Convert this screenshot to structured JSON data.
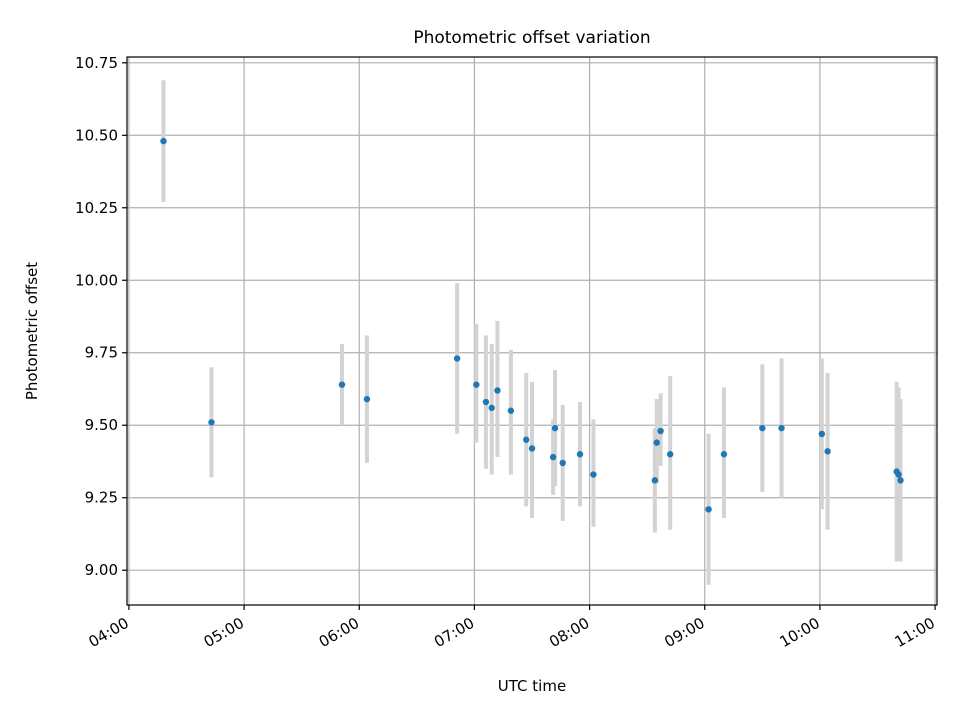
{
  "chart_data": {
    "type": "scatter",
    "title": "Photometric offset variation",
    "xlabel": "UTC time",
    "ylabel": "Photometric offset",
    "x_axis_type": "time",
    "xlim": [
      "03:59",
      "11:01"
    ],
    "ylim": [
      8.88,
      10.77
    ],
    "xticks": [
      "04:00",
      "05:00",
      "06:00",
      "07:00",
      "08:00",
      "09:00",
      "10:00",
      "11:00"
    ],
    "yticks": [
      9.0,
      9.25,
      9.5,
      9.75,
      10.0,
      10.25,
      10.5,
      10.75
    ],
    "ytick_labels": [
      "9.00",
      "9.25",
      "9.50",
      "9.75",
      "10.00",
      "10.25",
      "10.50",
      "10.75"
    ],
    "grid": true,
    "legend": "none",
    "marker_color": "#1f77b4",
    "errorbar_color": "#d3d3d3",
    "points": [
      {
        "x": "04:18",
        "y": 10.48,
        "err_low": 10.27,
        "err_high": 10.69
      },
      {
        "x": "04:43",
        "y": 9.51,
        "err_low": 9.32,
        "err_high": 9.7
      },
      {
        "x": "05:51",
        "y": 9.64,
        "err_low": 9.5,
        "err_high": 9.78
      },
      {
        "x": "06:04",
        "y": 9.59,
        "err_low": 9.37,
        "err_high": 9.81
      },
      {
        "x": "06:51",
        "y": 9.73,
        "err_low": 9.47,
        "err_high": 9.99
      },
      {
        "x": "07:01",
        "y": 9.64,
        "err_low": 9.44,
        "err_high": 9.85
      },
      {
        "x": "07:06",
        "y": 9.58,
        "err_low": 9.35,
        "err_high": 9.81
      },
      {
        "x": "07:09",
        "y": 9.56,
        "err_low": 9.33,
        "err_high": 9.78
      },
      {
        "x": "07:12",
        "y": 9.62,
        "err_low": 9.39,
        "err_high": 9.86
      },
      {
        "x": "07:19",
        "y": 9.55,
        "err_low": 9.33,
        "err_high": 9.76
      },
      {
        "x": "07:27",
        "y": 9.45,
        "err_low": 9.22,
        "err_high": 9.68
      },
      {
        "x": "07:30",
        "y": 9.42,
        "err_low": 9.18,
        "err_high": 9.65
      },
      {
        "x": "07:41",
        "y": 9.39,
        "err_low": 9.26,
        "err_high": 9.52
      },
      {
        "x": "07:42",
        "y": 9.49,
        "err_low": 9.29,
        "err_high": 9.69
      },
      {
        "x": "07:46",
        "y": 9.37,
        "err_low": 9.17,
        "err_high": 9.57
      },
      {
        "x": "07:55",
        "y": 9.4,
        "err_low": 9.22,
        "err_high": 9.58
      },
      {
        "x": "08:02",
        "y": 9.33,
        "err_low": 9.15,
        "err_high": 9.52
      },
      {
        "x": "08:34",
        "y": 9.31,
        "err_low": 9.13,
        "err_high": 9.49
      },
      {
        "x": "08:35",
        "y": 9.44,
        "err_low": 9.3,
        "err_high": 9.59
      },
      {
        "x": "08:37",
        "y": 9.48,
        "err_low": 9.36,
        "err_high": 9.61
      },
      {
        "x": "08:42",
        "y": 9.4,
        "err_low": 9.14,
        "err_high": 9.67
      },
      {
        "x": "09:02",
        "y": 9.21,
        "err_low": 8.95,
        "err_high": 9.47
      },
      {
        "x": "09:10",
        "y": 9.4,
        "err_low": 9.18,
        "err_high": 9.63
      },
      {
        "x": "09:30",
        "y": 9.49,
        "err_low": 9.27,
        "err_high": 9.71
      },
      {
        "x": "09:40",
        "y": 9.49,
        "err_low": 9.25,
        "err_high": 9.73
      },
      {
        "x": "10:01",
        "y": 9.47,
        "err_low": 9.21,
        "err_high": 9.73
      },
      {
        "x": "10:04",
        "y": 9.41,
        "err_low": 9.14,
        "err_high": 9.68
      },
      {
        "x": "10:40",
        "y": 9.34,
        "err_low": 9.03,
        "err_high": 9.65
      },
      {
        "x": "10:41",
        "y": 9.33,
        "err_low": 9.04,
        "err_high": 9.63
      },
      {
        "x": "10:42",
        "y": 9.31,
        "err_low": 9.03,
        "err_high": 9.59
      }
    ]
  }
}
